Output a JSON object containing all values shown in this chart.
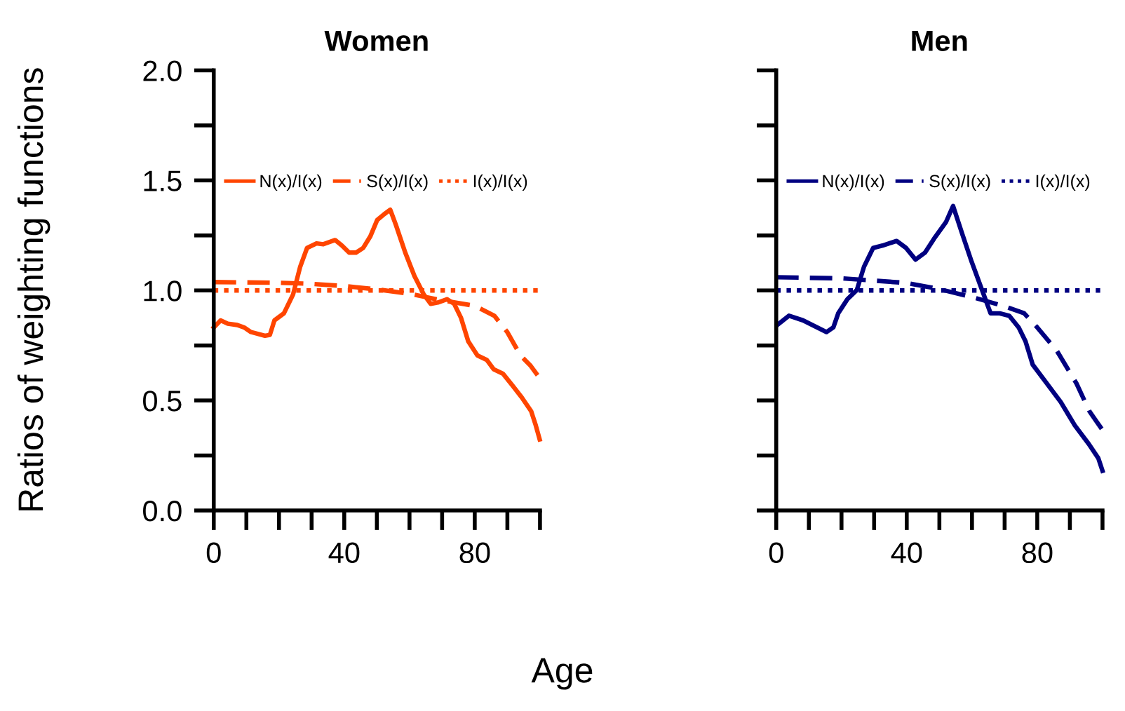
{
  "chart_data": [
    {
      "type": "line",
      "title": "Women",
      "xlabel": "Age",
      "ylabel": "Ratios of weighting functions",
      "legend": "top",
      "grid": false,
      "xlim": [
        0,
        100
      ],
      "xticks": [
        0,
        {
          "value": 10,
          "label": null
        },
        {
          "value": 20,
          "label": null
        },
        {
          "value": 30,
          "label": null
        },
        40,
        {
          "value": 50,
          "label": null
        },
        {
          "value": 60,
          "label": null
        },
        {
          "value": 70,
          "label": null
        },
        80,
        {
          "value": 90,
          "label": null
        },
        {
          "value": 100,
          "label": null
        }
      ],
      "ylim": [
        0,
        2
      ],
      "yticks": [
        {
          "value": 0,
          "label": "0.0"
        },
        {
          "value": 0.25,
          "label": null
        },
        {
          "value": 0.5,
          "label": "0.5"
        },
        {
          "value": 0.75,
          "label": null
        },
        {
          "value": 1,
          "label": "1.0"
        },
        {
          "value": 1.25,
          "label": null
        },
        {
          "value": 1.5,
          "label": "1.5"
        },
        {
          "value": 1.75,
          "label": null
        },
        {
          "value": 2,
          "label": "2.0"
        }
      ],
      "series": [
        {
          "name": "N(x)/I(x)",
          "color": "#ff4500",
          "line_style": "solid",
          "x": [
            0,
            2.1,
            4.3,
            7.2,
            9.3,
            11.4,
            15.7,
            17.2,
            18.6,
            21.5,
            24.3,
            26.5,
            28.6,
            31.5,
            33.6,
            37.2,
            39.3,
            41.5,
            43.6,
            45.8,
            48.0,
            50.1,
            52.2,
            54.1,
            55.8,
            58.7,
            61.5,
            64.4,
            66.5,
            68.7,
            71.5,
            73.7,
            75.8,
            78.0,
            80.8,
            83.7,
            85.8,
            88.7,
            91.6,
            94.4,
            97.3,
            98.7,
            99.9
          ],
          "values": [
            0.832,
            0.864,
            0.849,
            0.843,
            0.832,
            0.811,
            0.794,
            0.798,
            0.864,
            0.896,
            0.981,
            1.108,
            1.193,
            1.214,
            1.21,
            1.229,
            1.204,
            1.172,
            1.172,
            1.193,
            1.246,
            1.32,
            1.346,
            1.367,
            1.299,
            1.172,
            1.066,
            0.981,
            0.939,
            0.945,
            0.96,
            0.939,
            0.875,
            0.769,
            0.705,
            0.684,
            0.642,
            0.621,
            0.567,
            0.514,
            0.451,
            0.387,
            0.323
          ]
        },
        {
          "name": "S(x)/I(x)",
          "color": "#ff4500",
          "line_style": "dashed",
          "x": [
            0,
            20,
            30,
            40,
            50,
            60,
            70,
            80,
            86,
            90,
            94,
            97,
            100
          ],
          "values": [
            1.038,
            1.035,
            1.03,
            1.02,
            1.005,
            0.985,
            0.955,
            0.93,
            0.885,
            0.81,
            0.705,
            0.66,
            0.6
          ]
        },
        {
          "name": "I(x)/I(x)",
          "color": "#ff4500",
          "line_style": "dotted",
          "x": [
            0,
            100
          ],
          "values": [
            1.0,
            1.0
          ]
        }
      ]
    },
    {
      "type": "line",
      "title": "Men",
      "legend": "top",
      "grid": false,
      "tick_labels": "x",
      "xlim": [
        0,
        100
      ],
      "xticks": [
        0,
        {
          "value": 10,
          "label": null
        },
        {
          "value": 20,
          "label": null
        },
        {
          "value": 30,
          "label": null
        },
        40,
        {
          "value": 50,
          "label": null
        },
        {
          "value": 60,
          "label": null
        },
        {
          "value": 70,
          "label": null
        },
        80,
        {
          "value": 90,
          "label": null
        },
        {
          "value": 100,
          "label": null
        }
      ],
      "ylim": [
        0,
        2
      ],
      "yticks": [
        {
          "value": 0,
          "label": null
        },
        {
          "value": 0.25,
          "label": null
        },
        {
          "value": 0.5,
          "label": null
        },
        {
          "value": 0.75,
          "label": null
        },
        {
          "value": 1,
          "label": null
        },
        {
          "value": 1.25,
          "label": null
        },
        {
          "value": 1.5,
          "label": null
        },
        {
          "value": 1.75,
          "label": null
        },
        {
          "value": 2,
          "label": null
        }
      ],
      "series": [
        {
          "name": "N(x)/I(x)",
          "color": "#000080",
          "line_style": "solid",
          "x": [
            0.3,
            3.9,
            8.2,
            12.5,
            15.4,
            17.5,
            19.0,
            21.8,
            24.7,
            26.9,
            29.7,
            32.6,
            36.9,
            39.8,
            42.7,
            45.6,
            48.4,
            52.0,
            54.2,
            57.0,
            59.9,
            62.8,
            65.7,
            68.5,
            71.4,
            74.3,
            76.4,
            78.6,
            82.9,
            87.2,
            91.5,
            95.8,
            98.7,
            100
          ],
          "values": [
            0.843,
            0.885,
            0.864,
            0.832,
            0.811,
            0.832,
            0.896,
            0.96,
            1.002,
            1.108,
            1.193,
            1.204,
            1.225,
            1.193,
            1.14,
            1.172,
            1.236,
            1.31,
            1.384,
            1.257,
            1.13,
            1.013,
            0.896,
            0.896,
            0.885,
            0.832,
            0.769,
            0.663,
            0.578,
            0.493,
            0.387,
            0.302,
            0.238,
            0.18
          ]
        },
        {
          "name": "S(x)/I(x)",
          "color": "#000080",
          "line_style": "dashed",
          "x": [
            0,
            20,
            40,
            50,
            60,
            70,
            76,
            80,
            86,
            92,
            96,
            98,
            100
          ],
          "values": [
            1.06,
            1.055,
            1.034,
            1.006,
            0.97,
            0.928,
            0.896,
            0.832,
            0.726,
            0.578,
            0.451,
            0.408,
            0.366
          ]
        },
        {
          "name": "I(x)/I(x)",
          "color": "#000080",
          "line_style": "dotted",
          "x": [
            0,
            100
          ],
          "values": [
            1.0,
            1.0
          ]
        }
      ]
    }
  ]
}
